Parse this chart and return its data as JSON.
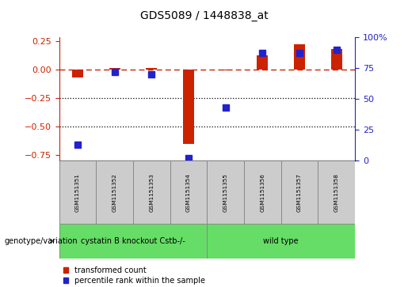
{
  "title": "GDS5089 / 1448838_at",
  "samples": [
    "GSM1151351",
    "GSM1151352",
    "GSM1151353",
    "GSM1151354",
    "GSM1151355",
    "GSM1151356",
    "GSM1151357",
    "GSM1151358"
  ],
  "red_values": [
    -0.07,
    0.01,
    0.01,
    -0.65,
    -0.01,
    0.12,
    0.22,
    0.18
  ],
  "blue_pct": [
    13,
    72,
    70,
    2,
    43,
    87,
    87,
    90
  ],
  "red_color": "#CC2200",
  "blue_color": "#2222CC",
  "group1_label": "cystatin B knockout Cstb-/-",
  "group2_label": "wild type",
  "group1_indices": [
    0,
    1,
    2,
    3
  ],
  "group2_indices": [
    4,
    5,
    6,
    7
  ],
  "genotype_label": "genotype/variation",
  "legend1": "transformed count",
  "legend2": "percentile rank within the sample",
  "ylim_left": [
    -0.8,
    0.28
  ],
  "ylim_right": [
    0,
    100
  ],
  "yticks_left": [
    -0.75,
    -0.5,
    -0.25,
    0.0,
    0.25
  ],
  "yticks_right": [
    0,
    25,
    50,
    75,
    100
  ],
  "bar_width": 0.3,
  "marker_size": 6,
  "bg_plot": "#FFFFFF",
  "bg_sample": "#CCCCCC",
  "bg_group1": "#66DD66",
  "bg_group2": "#66DD66",
  "hline_y": 0.0,
  "dotted_lines": [
    -0.25,
    -0.5
  ],
  "fig_width": 5.15,
  "fig_height": 3.63,
  "fig_dpi": 100
}
